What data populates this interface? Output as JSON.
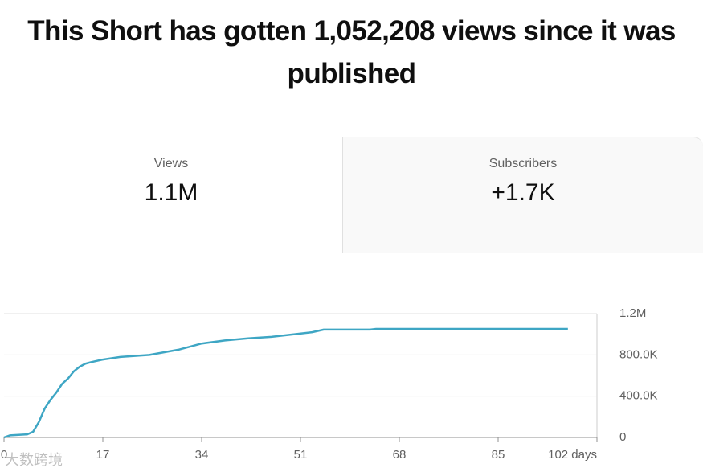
{
  "header": {
    "title": "This Short has gotten 1,052,208 views since it was published"
  },
  "cards": [
    {
      "label": "Views",
      "value": "1.1M"
    },
    {
      "label": "Subscribers",
      "value": "+1.7K"
    }
  ],
  "watermark": "大数跨境",
  "chart_data": {
    "type": "line",
    "x": [
      0,
      1,
      4,
      5,
      6,
      7,
      8,
      9,
      10,
      11,
      12,
      13,
      14,
      15,
      17,
      20,
      25,
      30,
      34,
      38,
      42,
      46,
      50,
      53,
      55,
      63,
      64,
      97
    ],
    "series": [
      {
        "color": "#3ea6c4",
        "values": [
          0,
          20000,
          30000,
          55000,
          150000,
          280000,
          365000,
          435000,
          520000,
          570000,
          640000,
          685000,
          715000,
          730000,
          755000,
          780000,
          800000,
          850000,
          910000,
          940000,
          960000,
          975000,
          1000000,
          1020000,
          1045000,
          1045000,
          1052208,
          1052208
        ]
      }
    ],
    "xlim": [
      0,
      102
    ],
    "xticks": [
      0,
      17,
      34,
      51,
      68,
      85,
      {
        "value": 102,
        "label": "102 days"
      }
    ],
    "ylim": [
      0,
      1200000
    ],
    "yticks": [
      0,
      {
        "value": 400000,
        "label": "400.0K"
      },
      {
        "value": 800000,
        "label": "800.0K"
      },
      {
        "value": 1200000,
        "label": "1.2M"
      }
    ],
    "grid": true
  }
}
